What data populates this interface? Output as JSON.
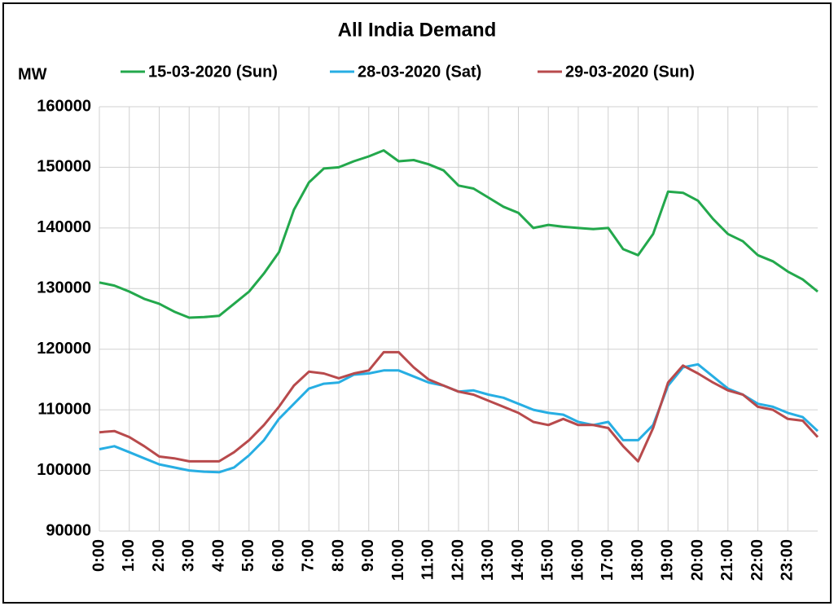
{
  "chart_data": {
    "type": "line",
    "title": "All India Demand",
    "y_label": "MW",
    "x": [
      0,
      0.5,
      1,
      1.5,
      2,
      2.5,
      3,
      3.5,
      4,
      4.5,
      5,
      5.5,
      6,
      6.5,
      7,
      7.5,
      8,
      8.5,
      9,
      9.5,
      10,
      10.5,
      11,
      11.5,
      12,
      12.5,
      13,
      13.5,
      14,
      14.5,
      15,
      15.5,
      16,
      16.5,
      17,
      17.5,
      18,
      18.5,
      19,
      19.5,
      20,
      20.5,
      21,
      21.5,
      22,
      22.5,
      23,
      23.5,
      24
    ],
    "series": [
      {
        "name": "15-03-2020 (Sun)",
        "color": "#23a84c",
        "values": [
          131000,
          130500,
          129500,
          128300,
          127500,
          126200,
          125200,
          125300,
          125500,
          127500,
          129500,
          132500,
          136000,
          143000,
          147500,
          149800,
          150000,
          151000,
          151800,
          152800,
          151000,
          151200,
          150500,
          149500,
          147000,
          146500,
          145000,
          143500,
          142500,
          140000,
          140500,
          140200,
          140000,
          139800,
          140000,
          136500,
          135500,
          139000,
          146000,
          145800,
          144500,
          141500,
          139000,
          137800,
          135500,
          134500,
          132800,
          131500,
          129500
        ]
      },
      {
        "name": "28-03-2020 (Sat)",
        "color": "#27aee3",
        "values": [
          103500,
          104000,
          103000,
          102000,
          101000,
          100500,
          100000,
          99800,
          99700,
          100500,
          102500,
          105000,
          108500,
          111000,
          113500,
          114300,
          114500,
          115800,
          116000,
          116500,
          116500,
          115500,
          114500,
          114000,
          113000,
          113200,
          112500,
          112000,
          111000,
          110000,
          109500,
          109200,
          108000,
          107500,
          108000,
          105000,
          105000,
          107500,
          114000,
          117000,
          117500,
          115500,
          113500,
          112500,
          111000,
          110500,
          109500,
          108800,
          106500
        ]
      },
      {
        "name": "29-03-2020 (Sun)",
        "color": "#b84a4c",
        "values": [
          106300,
          106500,
          105500,
          104000,
          102300,
          102000,
          101500,
          101500,
          101500,
          103000,
          105000,
          107500,
          110500,
          114000,
          116300,
          116000,
          115200,
          116000,
          116500,
          119500,
          119500,
          117000,
          115000,
          114000,
          113000,
          112500,
          111500,
          110500,
          109500,
          108000,
          107500,
          108500,
          107500,
          107500,
          107000,
          104000,
          101500,
          107000,
          114500,
          117300,
          116000,
          114500,
          113200,
          112500,
          110500,
          110000,
          108500,
          108200,
          105500
        ]
      }
    ],
    "xlim": [
      0,
      24
    ],
    "xticks": [
      {
        "value": 0,
        "label": "0:00"
      },
      {
        "value": 1,
        "label": "1:00"
      },
      {
        "value": 2,
        "label": "2:00"
      },
      {
        "value": 3,
        "label": "3:00"
      },
      {
        "value": 4,
        "label": "4:00"
      },
      {
        "value": 5,
        "label": "5:00"
      },
      {
        "value": 6,
        "label": "6:00"
      },
      {
        "value": 7,
        "label": "7:00"
      },
      {
        "value": 8,
        "label": "8:00"
      },
      {
        "value": 9,
        "label": "9:00"
      },
      {
        "value": 10,
        "label": "10:00"
      },
      {
        "value": 11,
        "label": "11:00"
      },
      {
        "value": 12,
        "label": "12:00"
      },
      {
        "value": 13,
        "label": "13:00"
      },
      {
        "value": 14,
        "label": "14:00"
      },
      {
        "value": 15,
        "label": "15:00"
      },
      {
        "value": 16,
        "label": "16:00"
      },
      {
        "value": 17,
        "label": "17:00"
      },
      {
        "value": 18,
        "label": "18:00"
      },
      {
        "value": 19,
        "label": "19:00"
      },
      {
        "value": 20,
        "label": "20:00"
      },
      {
        "value": 21,
        "label": "21:00"
      },
      {
        "value": 22,
        "label": "22:00"
      },
      {
        "value": 23,
        "label": "23:00"
      }
    ],
    "ylim": [
      90000,
      160000
    ],
    "yticks": [
      90000,
      100000,
      110000,
      120000,
      130000,
      140000,
      150000,
      160000
    ],
    "grid": true
  }
}
